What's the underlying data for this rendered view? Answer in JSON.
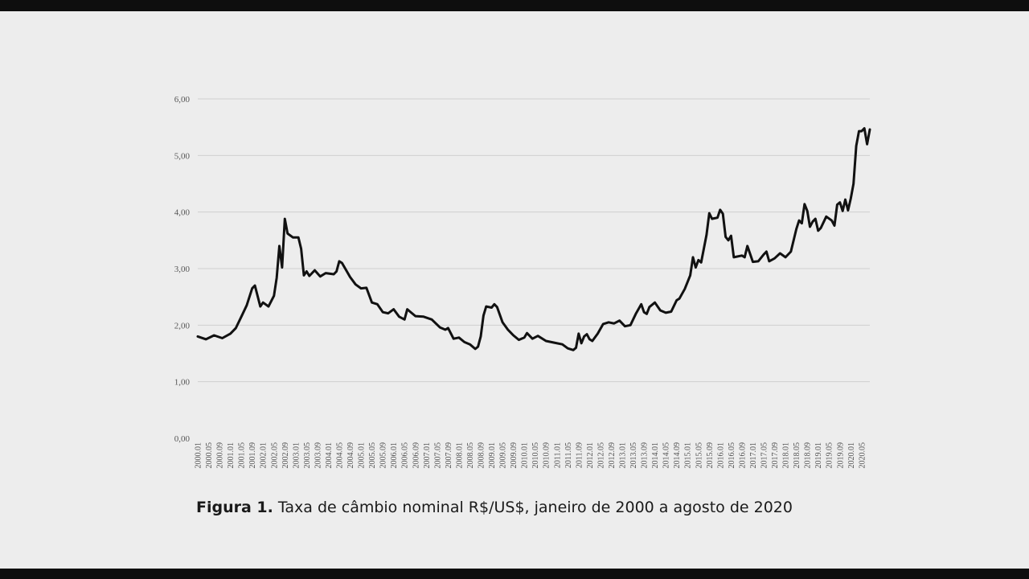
{
  "caption": {
    "label": "Figura 1.",
    "text": "Taxa de câmbio nominal R$/US$, janeiro de 2000 a agosto de 2020"
  },
  "chart_data": {
    "type": "line",
    "title": "",
    "xlabel": "",
    "ylabel": "",
    "ylim": [
      0,
      6
    ],
    "y_ticks": [
      "0,00",
      "1,00",
      "2,00",
      "3,00",
      "4,00",
      "5,00",
      "6,00"
    ],
    "grid": true,
    "x_ticks": [
      "2000.01",
      "2000.05",
      "2000.09",
      "2001.01",
      "2001.05",
      "2001.09",
      "2002.01",
      "2002.05",
      "2002.09",
      "2003.01",
      "2003.05",
      "2003.09",
      "2004.01",
      "2004.05",
      "2004.09",
      "2005.01",
      "2005.05",
      "2005.09",
      "2006.01",
      "2006.05",
      "2006.09",
      "2007.01",
      "2007.05",
      "2007.09",
      "2008.01",
      "2008.05",
      "2008.09",
      "2009.01",
      "2009.05",
      "2009.09",
      "2010.01",
      "2010.05",
      "2010.09",
      "2011.01",
      "2011.05",
      "2011.09",
      "2012.01",
      "2012.05",
      "2012.09",
      "2013.01",
      "2013.05",
      "2013.09",
      "2014.01",
      "2014.05",
      "2014.09",
      "2015.01",
      "2015.05",
      "2015.09",
      "2016.01",
      "2016.05",
      "2016.09",
      "2017.01",
      "2017.05",
      "2017.09",
      "2018.01",
      "2018.05",
      "2018.09",
      "2019.01",
      "2019.05",
      "2019.09",
      "2020.01",
      "2020.05"
    ],
    "series": [
      {
        "color": "#111111",
        "points": [
          [
            "2000.01",
            1.8
          ],
          [
            "2000.04",
            1.75
          ],
          [
            "2000.07",
            1.82
          ],
          [
            "2000.10",
            1.77
          ],
          [
            "2001.01",
            1.85
          ],
          [
            "2001.03",
            1.95
          ],
          [
            "2001.05",
            2.15
          ],
          [
            "2001.07",
            2.35
          ],
          [
            "2001.09",
            2.65
          ],
          [
            "2001.10",
            2.7
          ],
          [
            "2001.12",
            2.33
          ],
          [
            "2002.01",
            2.4
          ],
          [
            "2002.03",
            2.33
          ],
          [
            "2002.05",
            2.52
          ],
          [
            "2002.06",
            2.84
          ],
          [
            "2002.07",
            3.4
          ],
          [
            "2002.08",
            3.02
          ],
          [
            "2002.09",
            3.88
          ],
          [
            "2002.10",
            3.62
          ],
          [
            "2002.12",
            3.55
          ],
          [
            "2003.02",
            3.55
          ],
          [
            "2003.03",
            3.35
          ],
          [
            "2003.04",
            2.88
          ],
          [
            "2003.05",
            2.95
          ],
          [
            "2003.06",
            2.87
          ],
          [
            "2003.08",
            2.97
          ],
          [
            "2003.10",
            2.86
          ],
          [
            "2003.12",
            2.92
          ],
          [
            "2004.03",
            2.9
          ],
          [
            "2004.04",
            2.95
          ],
          [
            "2004.05",
            3.13
          ],
          [
            "2004.06",
            3.1
          ],
          [
            "2004.09",
            2.85
          ],
          [
            "2004.11",
            2.72
          ],
          [
            "2005.01",
            2.65
          ],
          [
            "2005.03",
            2.66
          ],
          [
            "2005.05",
            2.4
          ],
          [
            "2005.07",
            2.37
          ],
          [
            "2005.09",
            2.23
          ],
          [
            "2005.11",
            2.21
          ],
          [
            "2006.01",
            2.28
          ],
          [
            "2006.03",
            2.15
          ],
          [
            "2006.05",
            2.1
          ],
          [
            "2006.06",
            2.28
          ],
          [
            "2006.09",
            2.16
          ],
          [
            "2006.12",
            2.15
          ],
          [
            "2007.03",
            2.1
          ],
          [
            "2007.06",
            1.96
          ],
          [
            "2007.08",
            1.92
          ],
          [
            "2007.09",
            1.95
          ],
          [
            "2007.11",
            1.76
          ],
          [
            "2008.01",
            1.78
          ],
          [
            "2008.03",
            1.7
          ],
          [
            "2008.05",
            1.66
          ],
          [
            "2008.07",
            1.58
          ],
          [
            "2008.08",
            1.62
          ],
          [
            "2008.09",
            1.8
          ],
          [
            "2008.10",
            2.17
          ],
          [
            "2008.11",
            2.33
          ],
          [
            "2009.01",
            2.31
          ],
          [
            "2009.02",
            2.37
          ],
          [
            "2009.03",
            2.32
          ],
          [
            "2009.05",
            2.05
          ],
          [
            "2009.07",
            1.92
          ],
          [
            "2009.09",
            1.82
          ],
          [
            "2009.11",
            1.74
          ],
          [
            "2010.01",
            1.78
          ],
          [
            "2010.02",
            1.86
          ],
          [
            "2010.04",
            1.76
          ],
          [
            "2010.06",
            1.81
          ],
          [
            "2010.09",
            1.72
          ],
          [
            "2010.12",
            1.69
          ],
          [
            "2011.03",
            1.66
          ],
          [
            "2011.05",
            1.59
          ],
          [
            "2011.07",
            1.56
          ],
          [
            "2011.08",
            1.6
          ],
          [
            "2011.09",
            1.85
          ],
          [
            "2011.10",
            1.68
          ],
          [
            "2011.11",
            1.8
          ],
          [
            "2011.12",
            1.84
          ],
          [
            "2012.01",
            1.75
          ],
          [
            "2012.02",
            1.72
          ],
          [
            "2012.04",
            1.85
          ],
          [
            "2012.06",
            2.02
          ],
          [
            "2012.08",
            2.05
          ],
          [
            "2012.10",
            2.03
          ],
          [
            "2012.12",
            2.08
          ],
          [
            "2013.02",
            1.98
          ],
          [
            "2013.04",
            2.0
          ],
          [
            "2013.06",
            2.2
          ],
          [
            "2013.08",
            2.37
          ],
          [
            "2013.09",
            2.23
          ],
          [
            "2013.10",
            2.2
          ],
          [
            "2013.11",
            2.32
          ],
          [
            "2014.01",
            2.4
          ],
          [
            "2014.03",
            2.26
          ],
          [
            "2014.05",
            2.22
          ],
          [
            "2014.07",
            2.24
          ],
          [
            "2014.09",
            2.44
          ],
          [
            "2014.10",
            2.47
          ],
          [
            "2014.12",
            2.64
          ],
          [
            "2015.02",
            2.88
          ],
          [
            "2015.03",
            3.2
          ],
          [
            "2015.04",
            3.02
          ],
          [
            "2015.05",
            3.15
          ],
          [
            "2015.06",
            3.11
          ],
          [
            "2015.08",
            3.6
          ],
          [
            "2015.09",
            3.98
          ],
          [
            "2015.10",
            3.88
          ],
          [
            "2015.12",
            3.9
          ],
          [
            "2016.01",
            4.04
          ],
          [
            "2016.02",
            3.97
          ],
          [
            "2016.03",
            3.56
          ],
          [
            "2016.04",
            3.5
          ],
          [
            "2016.05",
            3.58
          ],
          [
            "2016.06",
            3.2
          ],
          [
            "2016.09",
            3.23
          ],
          [
            "2016.10",
            3.2
          ],
          [
            "2016.11",
            3.4
          ],
          [
            "2017.01",
            3.12
          ],
          [
            "2017.03",
            3.13
          ],
          [
            "2017.05",
            3.25
          ],
          [
            "2017.06",
            3.3
          ],
          [
            "2017.07",
            3.13
          ],
          [
            "2017.09",
            3.18
          ],
          [
            "2017.11",
            3.27
          ],
          [
            "2018.01",
            3.2
          ],
          [
            "2018.03",
            3.3
          ],
          [
            "2018.05",
            3.7
          ],
          [
            "2018.06",
            3.85
          ],
          [
            "2018.07",
            3.8
          ],
          [
            "2018.08",
            4.14
          ],
          [
            "2018.09",
            4.02
          ],
          [
            "2018.10",
            3.74
          ],
          [
            "2018.11",
            3.83
          ],
          [
            "2018.12",
            3.88
          ],
          [
            "2019.01",
            3.67
          ],
          [
            "2019.02",
            3.72
          ],
          [
            "2019.04",
            3.92
          ],
          [
            "2019.06",
            3.85
          ],
          [
            "2019.07",
            3.76
          ],
          [
            "2019.08",
            4.13
          ],
          [
            "2019.09",
            4.17
          ],
          [
            "2019.10",
            4.02
          ],
          [
            "2019.11",
            4.22
          ],
          [
            "2019.12",
            4.03
          ],
          [
            "2020.01",
            4.24
          ],
          [
            "2020.02",
            4.5
          ],
          [
            "2020.03",
            5.17
          ],
          [
            "2020.04",
            5.43
          ],
          [
            "2020.05",
            5.43
          ],
          [
            "2020.06",
            5.48
          ],
          [
            "2020.07",
            5.2
          ],
          [
            "2020.08",
            5.46
          ]
        ]
      }
    ]
  }
}
